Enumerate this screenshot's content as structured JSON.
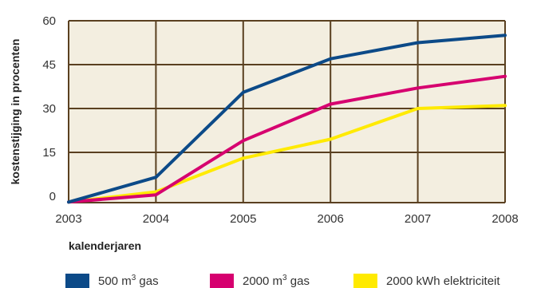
{
  "chart_data": {
    "type": "line",
    "ylabel": "kostenstijging in procenten",
    "xlabel": "kalenderjaren",
    "x": [
      2003,
      2004,
      2005,
      2006,
      2007,
      2008
    ],
    "xticks": [
      "2003",
      "2004",
      "2005",
      "2006",
      "2007",
      "2008"
    ],
    "yticks": [
      "0",
      "15",
      "30",
      "45",
      "60"
    ],
    "yticks_values": [
      0,
      15,
      30,
      45,
      60
    ],
    "ylim": [
      -2,
      60
    ],
    "xlim": [
      2003,
      2008
    ],
    "grid": true,
    "plot_background": "#f3eee0",
    "grid_color": "#5a4020",
    "legend_position": "bottom",
    "series": [
      {
        "name": "500 m³ gas",
        "color": "#0c4a88",
        "values": [
          -2,
          6.5,
          35.5,
          47,
          52.5,
          55
        ]
      },
      {
        "name": "2000 m³ gas",
        "color": "#d6006f",
        "values": [
          -2,
          0.5,
          19,
          31.5,
          37,
          41
        ]
      },
      {
        "name": "2000 kWh elektriciteit",
        "color": "#ffea00",
        "values": [
          -2,
          1.5,
          13,
          19.5,
          30,
          31
        ]
      }
    ]
  },
  "legend": {
    "items": [
      {
        "main": "500 m",
        "sup": "3",
        "rest": " gas",
        "color": "#0c4a88"
      },
      {
        "main": "2000 m",
        "sup": "3",
        "rest": " gas",
        "color": "#d6006f"
      },
      {
        "main": "2000 kWh elektriciteit",
        "sup": "",
        "rest": "",
        "color": "#ffea00"
      }
    ]
  }
}
